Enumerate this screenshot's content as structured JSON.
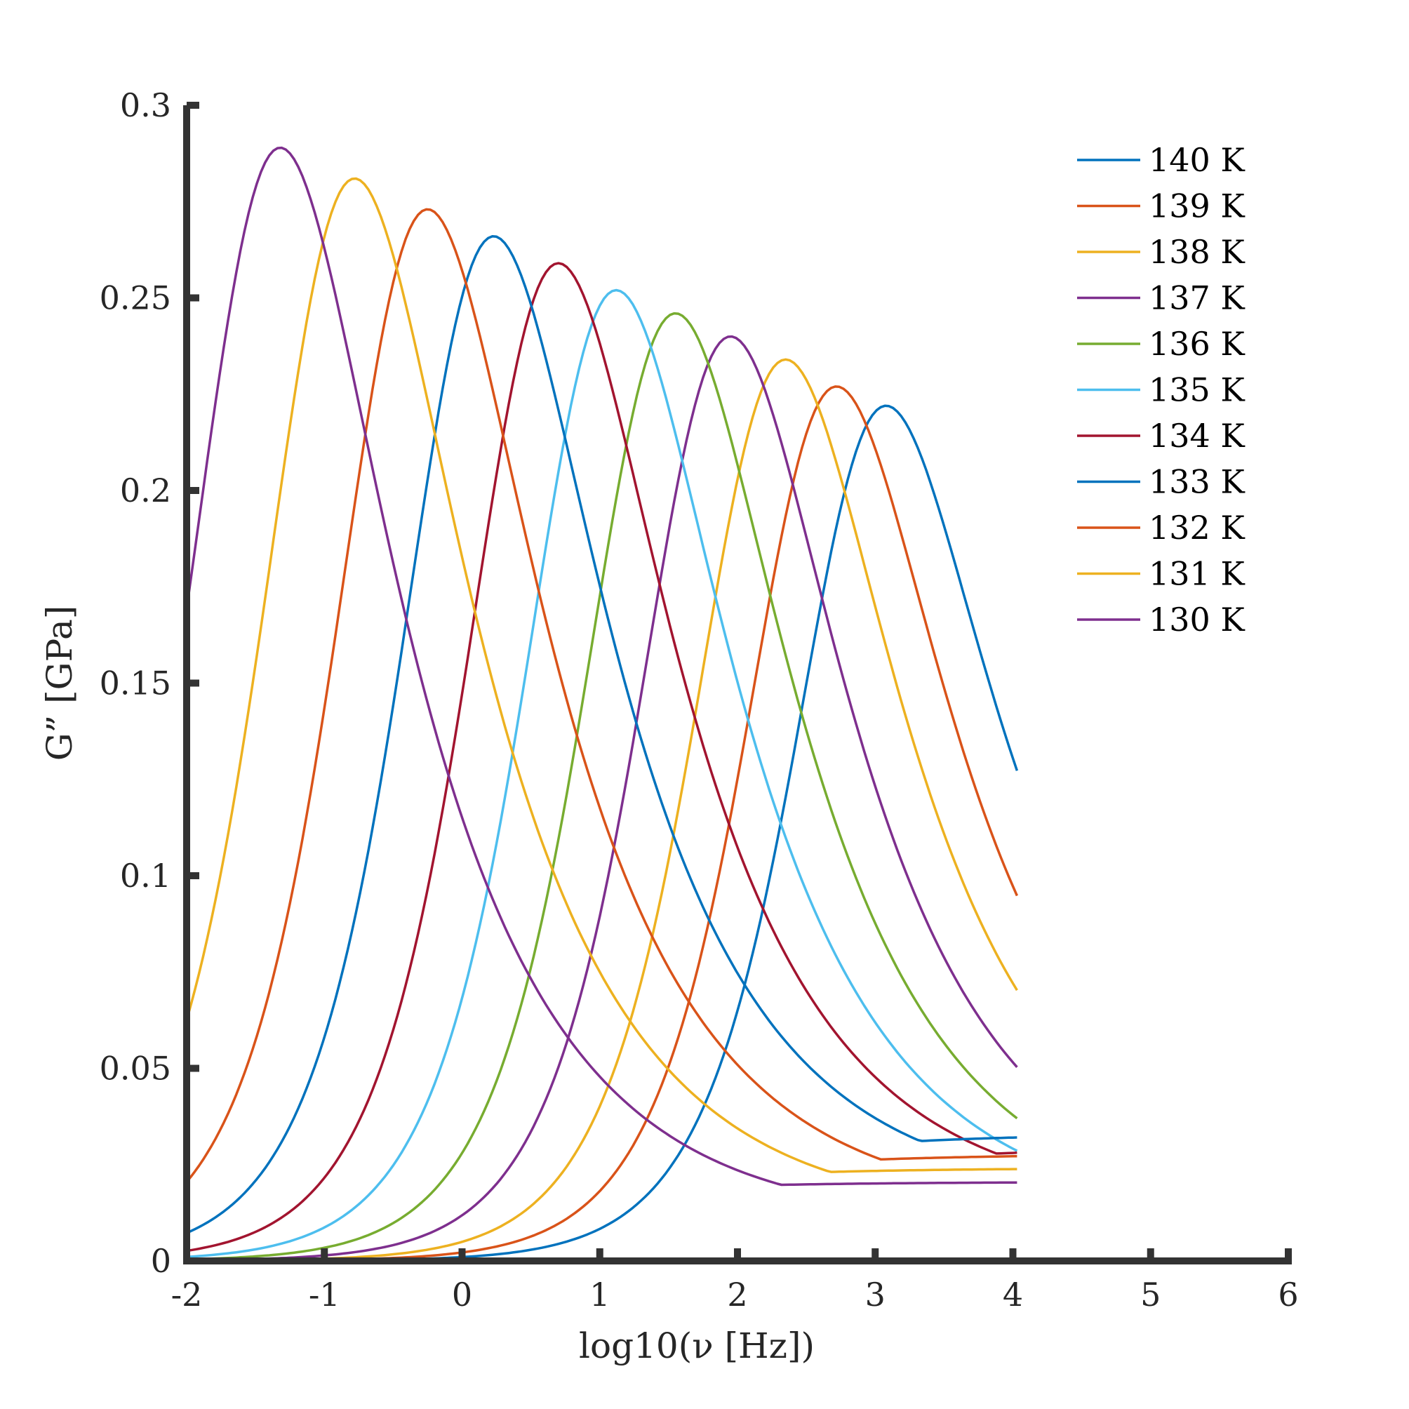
{
  "chart_data": {
    "type": "line",
    "title": "",
    "xlabel": "log10(ν [Hz])",
    "ylabel": "G” [GPa]",
    "xlim": [
      -2,
      6
    ],
    "ylim": [
      0,
      0.3
    ],
    "xticks": [
      -2,
      -1,
      0,
      1,
      2,
      3,
      4,
      5,
      6
    ],
    "xtick_labels": [
      "-2",
      "-1",
      "0",
      "1",
      "2",
      "3",
      "4",
      "5",
      "6"
    ],
    "yticks": [
      0,
      0.05,
      0.1,
      0.15,
      0.2,
      0.25,
      0.3
    ],
    "ytick_labels": [
      "0",
      "0.05",
      "0.1",
      "0.15",
      "0.2",
      "0.25",
      "0.3"
    ],
    "grid": false,
    "legend_position": "top-right",
    "axis_color": "#333333",
    "x_data_range": [
      -2,
      4.05
    ],
    "series": [
      {
        "name": "140 K",
        "color": "#0072BD",
        "peak_x": 3.08,
        "peak_y": 0.222,
        "tail_y": 0.0225,
        "end_y": 0.142
      },
      {
        "name": "139 K",
        "color": "#D95319",
        "peak_x": 2.72,
        "peak_y": 0.227,
        "tail_y": 0.018,
        "end_y": 0.109
      },
      {
        "name": "138 K",
        "color": "#EDB120",
        "peak_x": 2.35,
        "peak_y": 0.234,
        "tail_y": 0.015,
        "end_y": 0.081
      },
      {
        "name": "137 K",
        "color": "#7E2F8E",
        "peak_x": 1.95,
        "peak_y": 0.24,
        "tail_y": 0.012,
        "end_y": 0.061
      },
      {
        "name": "136 K",
        "color": "#77AC30",
        "peak_x": 1.55,
        "peak_y": 0.246,
        "tail_y": 0.011,
        "end_y": 0.046
      },
      {
        "name": "135 K",
        "color": "#4DBEEE",
        "peak_x": 1.12,
        "peak_y": 0.252,
        "tail_y": 0.012,
        "end_y": 0.035
      },
      {
        "name": "134 K",
        "color": "#A2142F",
        "peak_x": 0.7,
        "peak_y": 0.259,
        "tail_y": 0.016,
        "end_y": 0.028
      },
      {
        "name": "133 K",
        "color": "#0072BD",
        "peak_x": 0.23,
        "peak_y": 0.266,
        "tail_y": 0.018,
        "end_y": 0.023
      },
      {
        "name": "132 K",
        "color": "#D95319",
        "peak_x": -0.25,
        "peak_y": 0.273,
        "tail_y": 0.015,
        "end_y": 0.019
      },
      {
        "name": "131 K",
        "color": "#EDB120",
        "peak_x": -0.78,
        "peak_y": 0.281,
        "tail_y": 0.013,
        "end_y": 0.015
      },
      {
        "name": "130 K",
        "color": "#7E2F8E",
        "peak_x": -1.32,
        "peak_y": 0.289,
        "tail_y": 0.011,
        "end_y": 0.013
      }
    ]
  }
}
